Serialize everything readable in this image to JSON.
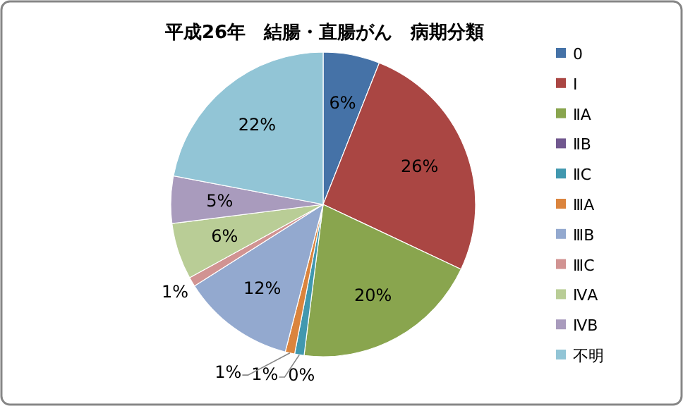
{
  "chart_data": {
    "type": "pie",
    "title": "平成26年　結腸・直腸がん　病期分類",
    "categories": [
      "0",
      "Ⅰ",
      "ⅡA",
      "ⅡB",
      "ⅡC",
      "ⅢA",
      "ⅢB",
      "ⅢC",
      "ⅣA",
      "ⅣB",
      "不明"
    ],
    "values": [
      6,
      26,
      20,
      0,
      1,
      1,
      12,
      1,
      6,
      5,
      22
    ],
    "value_labels": [
      "6%",
      "26%",
      "20%",
      "0%",
      "1%",
      "1%",
      "12%",
      "1%",
      "6%",
      "5%",
      "22%"
    ],
    "colors": [
      "#4572a7",
      "#aa4643",
      "#89a54e",
      "#71588f",
      "#4198af",
      "#db843d",
      "#93a9cf",
      "#d19392",
      "#b9cd96",
      "#a99bbd",
      "#92c5d6"
    ],
    "legend": "right"
  }
}
